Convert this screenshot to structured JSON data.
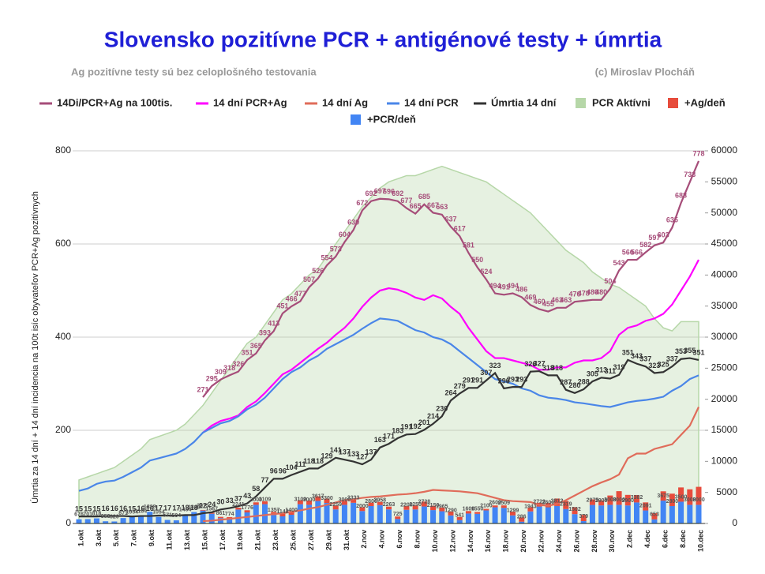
{
  "chart_data": {
    "type": "combo",
    "title": "Slovensko  pozitívne PCR + antigénové testy + úmrtia",
    "subtitle": "Ag pozitívne testy sú bez celoplošného testovania",
    "credit": "(c) Miroslav Plocháň",
    "y_label": "Úmrtia za 14 dní + 14 dní incidencia na 100t isíc obyvateľov PCR+Ag pozitívnych",
    "ylim": [
      0,
      800
    ],
    "yticks": [
      0,
      200,
      400,
      600,
      800
    ],
    "y2lim": [
      0,
      60000
    ],
    "y2ticks": [
      0,
      5000,
      10000,
      15000,
      20000,
      25000,
      30000,
      35000,
      40000,
      45000,
      50000,
      55000,
      60000
    ],
    "grid": true,
    "categories": [
      "1.okt",
      null,
      "3.okt",
      null,
      "5.okt",
      null,
      "7.okt",
      null,
      "9.okt",
      null,
      "11.okt",
      null,
      "13.okt",
      null,
      "15.okt",
      null,
      "17.okt",
      null,
      "19.okt",
      null,
      "21.okt",
      null,
      "23.okt",
      null,
      "25.okt",
      null,
      "27.okt",
      null,
      "29.okt",
      null,
      "31.okt",
      null,
      "2.nov",
      null,
      "4.nov",
      null,
      "6.nov",
      null,
      "8.nov",
      null,
      "10.nov",
      null,
      "12.nov",
      null,
      "14.nov",
      null,
      "16.nov",
      null,
      "18.nov",
      null,
      "20.nov",
      null,
      "22.nov",
      null,
      "24.nov",
      null,
      "26.nov",
      null,
      "28.nov",
      null,
      "30.nov",
      null,
      "2.dec",
      null,
      "4.dec",
      null,
      "6.dec",
      null,
      "8.dec",
      null,
      "10.dec"
    ],
    "series": [
      {
        "name": "14Di/PCR+Ag na 100tis.",
        "type": "line",
        "color": "#a64d79",
        "labels": true,
        "values": [
          null,
          null,
          null,
          null,
          null,
          null,
          null,
          null,
          null,
          null,
          null,
          null,
          null,
          null,
          271,
          295,
          309,
          318,
          326,
          351,
          365,
          393,
          413,
          451,
          466,
          477,
          507,
          526,
          554,
          573,
          604,
          630,
          672,
          692,
          697,
          696,
          692,
          677,
          665,
          685,
          667,
          663,
          637,
          617,
          581,
          550,
          524,
          494,
          491,
          494,
          486,
          469,
          460,
          455,
          463,
          463,
          476,
          478,
          480,
          480,
          504,
          543,
          566,
          566,
          582,
          597,
          603,
          635,
          688,
          733,
          778
        ]
      },
      {
        "name": "14 dní PCR+Ag",
        "type": "line",
        "color": "#ff00ff",
        "values": [
          null,
          null,
          null,
          null,
          null,
          null,
          null,
          null,
          null,
          null,
          null,
          null,
          null,
          null,
          195,
          210,
          220,
          225,
          232,
          250,
          262,
          280,
          300,
          320,
          330,
          345,
          360,
          375,
          388,
          405,
          420,
          440,
          465,
          485,
          500,
          505,
          502,
          495,
          485,
          480,
          490,
          483,
          465,
          450,
          420,
          395,
          370,
          355,
          355,
          350,
          345,
          340,
          330,
          330,
          335,
          335,
          345,
          350,
          350,
          355,
          370,
          405,
          420,
          425,
          435,
          440,
          450,
          470,
          500,
          530,
          566
        ]
      },
      {
        "name": "14 dní Ag",
        "type": "line",
        "color": "#e06c5a",
        "values": [
          null,
          null,
          null,
          null,
          null,
          null,
          null,
          null,
          null,
          null,
          null,
          null,
          null,
          null,
          5,
          6,
          8,
          10,
          12,
          14,
          16,
          18,
          20,
          22,
          25,
          28,
          32,
          35,
          40,
          45,
          50,
          52,
          55,
          57,
          58,
          60,
          62,
          63,
          65,
          68,
          72,
          71,
          70,
          69,
          67,
          65,
          60,
          55,
          50,
          48,
          47,
          46,
          40,
          38,
          42,
          50,
          60,
          70,
          80,
          88,
          95,
          105,
          140,
          150,
          150,
          160,
          165,
          170,
          190,
          210,
          250
        ]
      },
      {
        "name": "14 dní PCR",
        "type": "line",
        "color": "#4a86e8",
        "values": [
          70,
          75,
          85,
          90,
          92,
          100,
          110,
          120,
          135,
          140,
          145,
          150,
          160,
          175,
          195,
          205,
          215,
          220,
          230,
          245,
          255,
          270,
          290,
          310,
          325,
          335,
          350,
          360,
          375,
          385,
          395,
          405,
          418,
          430,
          440,
          438,
          435,
          425,
          415,
          410,
          400,
          395,
          385,
          370,
          355,
          340,
          325,
          310,
          305,
          300,
          290,
          285,
          275,
          270,
          268,
          265,
          260,
          258,
          255,
          252,
          250,
          255,
          260,
          263,
          265,
          268,
          272,
          285,
          295,
          310,
          318
        ]
      },
      {
        "name": "Úmrtia 14 dní",
        "type": "line",
        "color": "#333333",
        "labels": true,
        "values": [
          15,
          15,
          15,
          16,
          16,
          16,
          15,
          16,
          16,
          17,
          17,
          17,
          18,
          18,
          22,
          24,
          30,
          33,
          37,
          43,
          58,
          77,
          96,
          96,
          104,
          111,
          118,
          118,
          129,
          141,
          137,
          133,
          127,
          137,
          163,
          171,
          183,
          191,
          192,
          201,
          214,
          230,
          264,
          279,
          291,
          291,
          307,
          323,
          290,
          293,
          293,
          326,
          327,
          318,
          318,
          287,
          280,
          288,
          305,
          313,
          311,
          319,
          351,
          343,
          337,
          323,
          325,
          337,
          353,
          355,
          351
        ]
      },
      {
        "name": "PCR Aktívni",
        "type": "area",
        "color": "#b6d7a8",
        "axis": "y2",
        "values": [
          7000,
          7500,
          8000,
          8500,
          9000,
          10000,
          11000,
          12000,
          13500,
          14000,
          14500,
          15000,
          16000,
          17500,
          19000,
          21000,
          23000,
          25000,
          27000,
          29000,
          30000,
          32000,
          34000,
          36000,
          37000,
          38500,
          40000,
          41000,
          43000,
          45000,
          47000,
          49000,
          51000,
          52500,
          54000,
          55000,
          55500,
          56000,
          56000,
          56500,
          57000,
          57500,
          57000,
          56500,
          56000,
          55500,
          55000,
          54000,
          53000,
          52000,
          51000,
          50000,
          48500,
          47000,
          45500,
          44000,
          43000,
          42000,
          40500,
          39500,
          38500,
          38000,
          37000,
          36000,
          35000,
          33000,
          31500,
          31000,
          32500,
          32500,
          32500
        ]
      },
      {
        "name": "+Ag/deň",
        "type": "bar",
        "color": "#e74c3c",
        "axis": "y2",
        "values": [
          0,
          0,
          0,
          0,
          0,
          0,
          0,
          0,
          0,
          0,
          0,
          0,
          0,
          0,
          100,
          150,
          200,
          250,
          300,
          350,
          400,
          450,
          500,
          550,
          600,
          650,
          700,
          750,
          700,
          650,
          600,
          500,
          600,
          550,
          500,
          450,
          400,
          600,
          700,
          800,
          700,
          600,
          650,
          500,
          400,
          300,
          250,
          300,
          400,
          600,
          700,
          650,
          600,
          700,
          1200,
          1300,
          1100,
          1000,
          900,
          800,
          1500,
          2200,
          1700,
          1200,
          1300,
          1000,
          1500,
          2000,
          2300,
          2500,
          2900
        ]
      },
      {
        "name": "+PCR/deň",
        "type": "bar",
        "color": "#4285f4",
        "axis": "y2",
        "labels": true,
        "values": [
          676,
          701,
          818,
          353,
          320,
          871,
          1054,
          1184,
          1888,
          1054,
          571,
          504,
          1454,
          1840,
          2075,
          1567,
          861,
          774,
          2241,
          1776,
          3000,
          3109,
          1357,
          1142,
          1400,
          3100,
          3000,
          3617,
          3300,
          2259,
          3000,
          3333,
          2000,
          2800,
          2958,
          2263,
          725,
          2200,
          2250,
          2728,
          2150,
          1965,
          1290,
          541,
          1600,
          1550,
          2100,
          2600,
          2509,
          1299,
          286,
          1943,
          2722,
          2600,
          2812,
          2319,
          1502,
          379,
          2975,
          2900,
          3000,
          3000,
          2900,
          3382,
          2091,
          653,
          3675,
          2800,
          3500,
          3000,
          3000
        ]
      }
    ]
  }
}
